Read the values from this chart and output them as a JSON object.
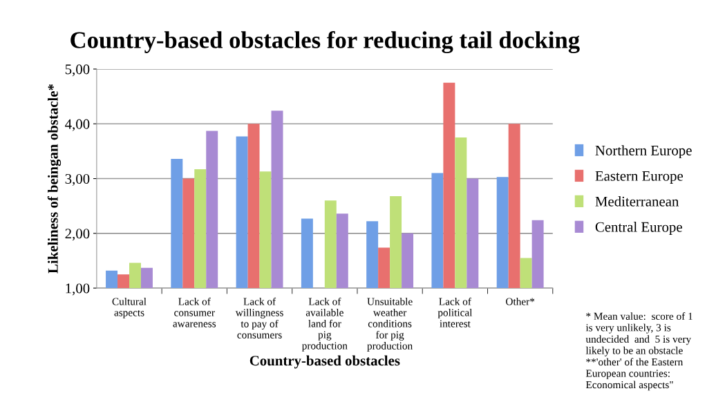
{
  "chart_data": {
    "type": "bar",
    "title": "Country-based obstacles for reducing tail docking",
    "xlabel": "Country-based obstacles",
    "ylabel": "Likeliness of beingan obstacle*",
    "categories": [
      "Cultural\naspects",
      "Lack of\nconsumer\nawareness",
      "Lack of\nwillingness\nto pay of\nconsumers",
      "Lack of\navailable\nland for\npig\nproduction",
      "Unsuitable\nweather\nconditions\nfor pig\nproduction",
      "Lack of\npolitical\ninterest",
      "Other*"
    ],
    "series": [
      {
        "name": "Northern Europe",
        "color": "#6f9fe6",
        "values": [
          1.32,
          3.36,
          3.77,
          2.27,
          2.22,
          3.1,
          3.03
        ]
      },
      {
        "name": "Eastern Europe",
        "color": "#e8706e",
        "values": [
          1.25,
          3.0,
          4.0,
          null,
          1.74,
          4.75,
          4.0
        ]
      },
      {
        "name": "Mediterranean",
        "color": "#bfe078",
        "values": [
          1.46,
          3.17,
          3.13,
          2.6,
          2.68,
          3.75,
          1.55
        ]
      },
      {
        "name": "Central Europe",
        "color": "#a88ad3",
        "values": [
          1.37,
          3.87,
          4.24,
          2.36,
          2.0,
          3.0,
          2.24
        ]
      }
    ],
    "ylim": [
      1,
      5
    ],
    "yticks": [
      {
        "value": 1,
        "label": "1,00"
      },
      {
        "value": 2,
        "label": "2,00"
      },
      {
        "value": 3,
        "label": "3,00"
      },
      {
        "value": 4,
        "label": "4,00"
      },
      {
        "value": 5,
        "label": "5,00"
      }
    ],
    "grid": "y",
    "legend": "right",
    "annotations": [
      "* Mean value:  score of 1\nis very unlikely, 3 is\nundecided  and  5 is very\nlikely to be an obstacle\n**'other' of the Eastern\nEuropean countries:\nEconomical aspects\""
    ]
  }
}
